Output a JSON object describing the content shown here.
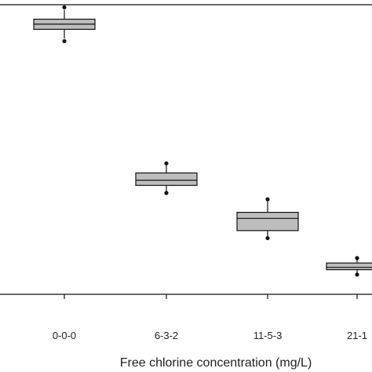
{
  "chart_data": {
    "type": "box",
    "title": "",
    "xlabel": "Free chlorine concentration (mg/L)",
    "ylabel": "",
    "categories": [
      "0-0-0",
      "6-3-2",
      "11-5-3",
      "21-1"
    ],
    "ylim": [
      0,
      100
    ],
    "grid": false,
    "legend": "none",
    "box_fill": "#bdbdbd",
    "stroke": "#111111",
    "boxes": [
      {
        "category": "0-0-0",
        "whisker_low": 88.3,
        "q1": 91.5,
        "median": 93.3,
        "q3": 95.0,
        "whisker_high": 98.2,
        "outliers": [
          87.4,
          99.1
        ]
      },
      {
        "category": "6-3-2",
        "whisker_low": 35.5,
        "q1": 37.6,
        "median": 39.4,
        "q3": 41.9,
        "whisker_high": 44.5,
        "outliers": [
          35.0,
          45.2
        ]
      },
      {
        "category": "11-5-3",
        "whisker_low": 19.8,
        "q1": 22.0,
        "median": 26.2,
        "q3": 28.3,
        "whisker_high": 32.2,
        "outliers": [
          19.4,
          32.8
        ]
      },
      {
        "category": "21-1",
        "whisker_low": 7.1,
        "q1": 8.5,
        "median": 9.3,
        "q3": 10.8,
        "whisker_high": 12.2,
        "outliers": [
          6.8,
          12.5
        ]
      }
    ]
  }
}
